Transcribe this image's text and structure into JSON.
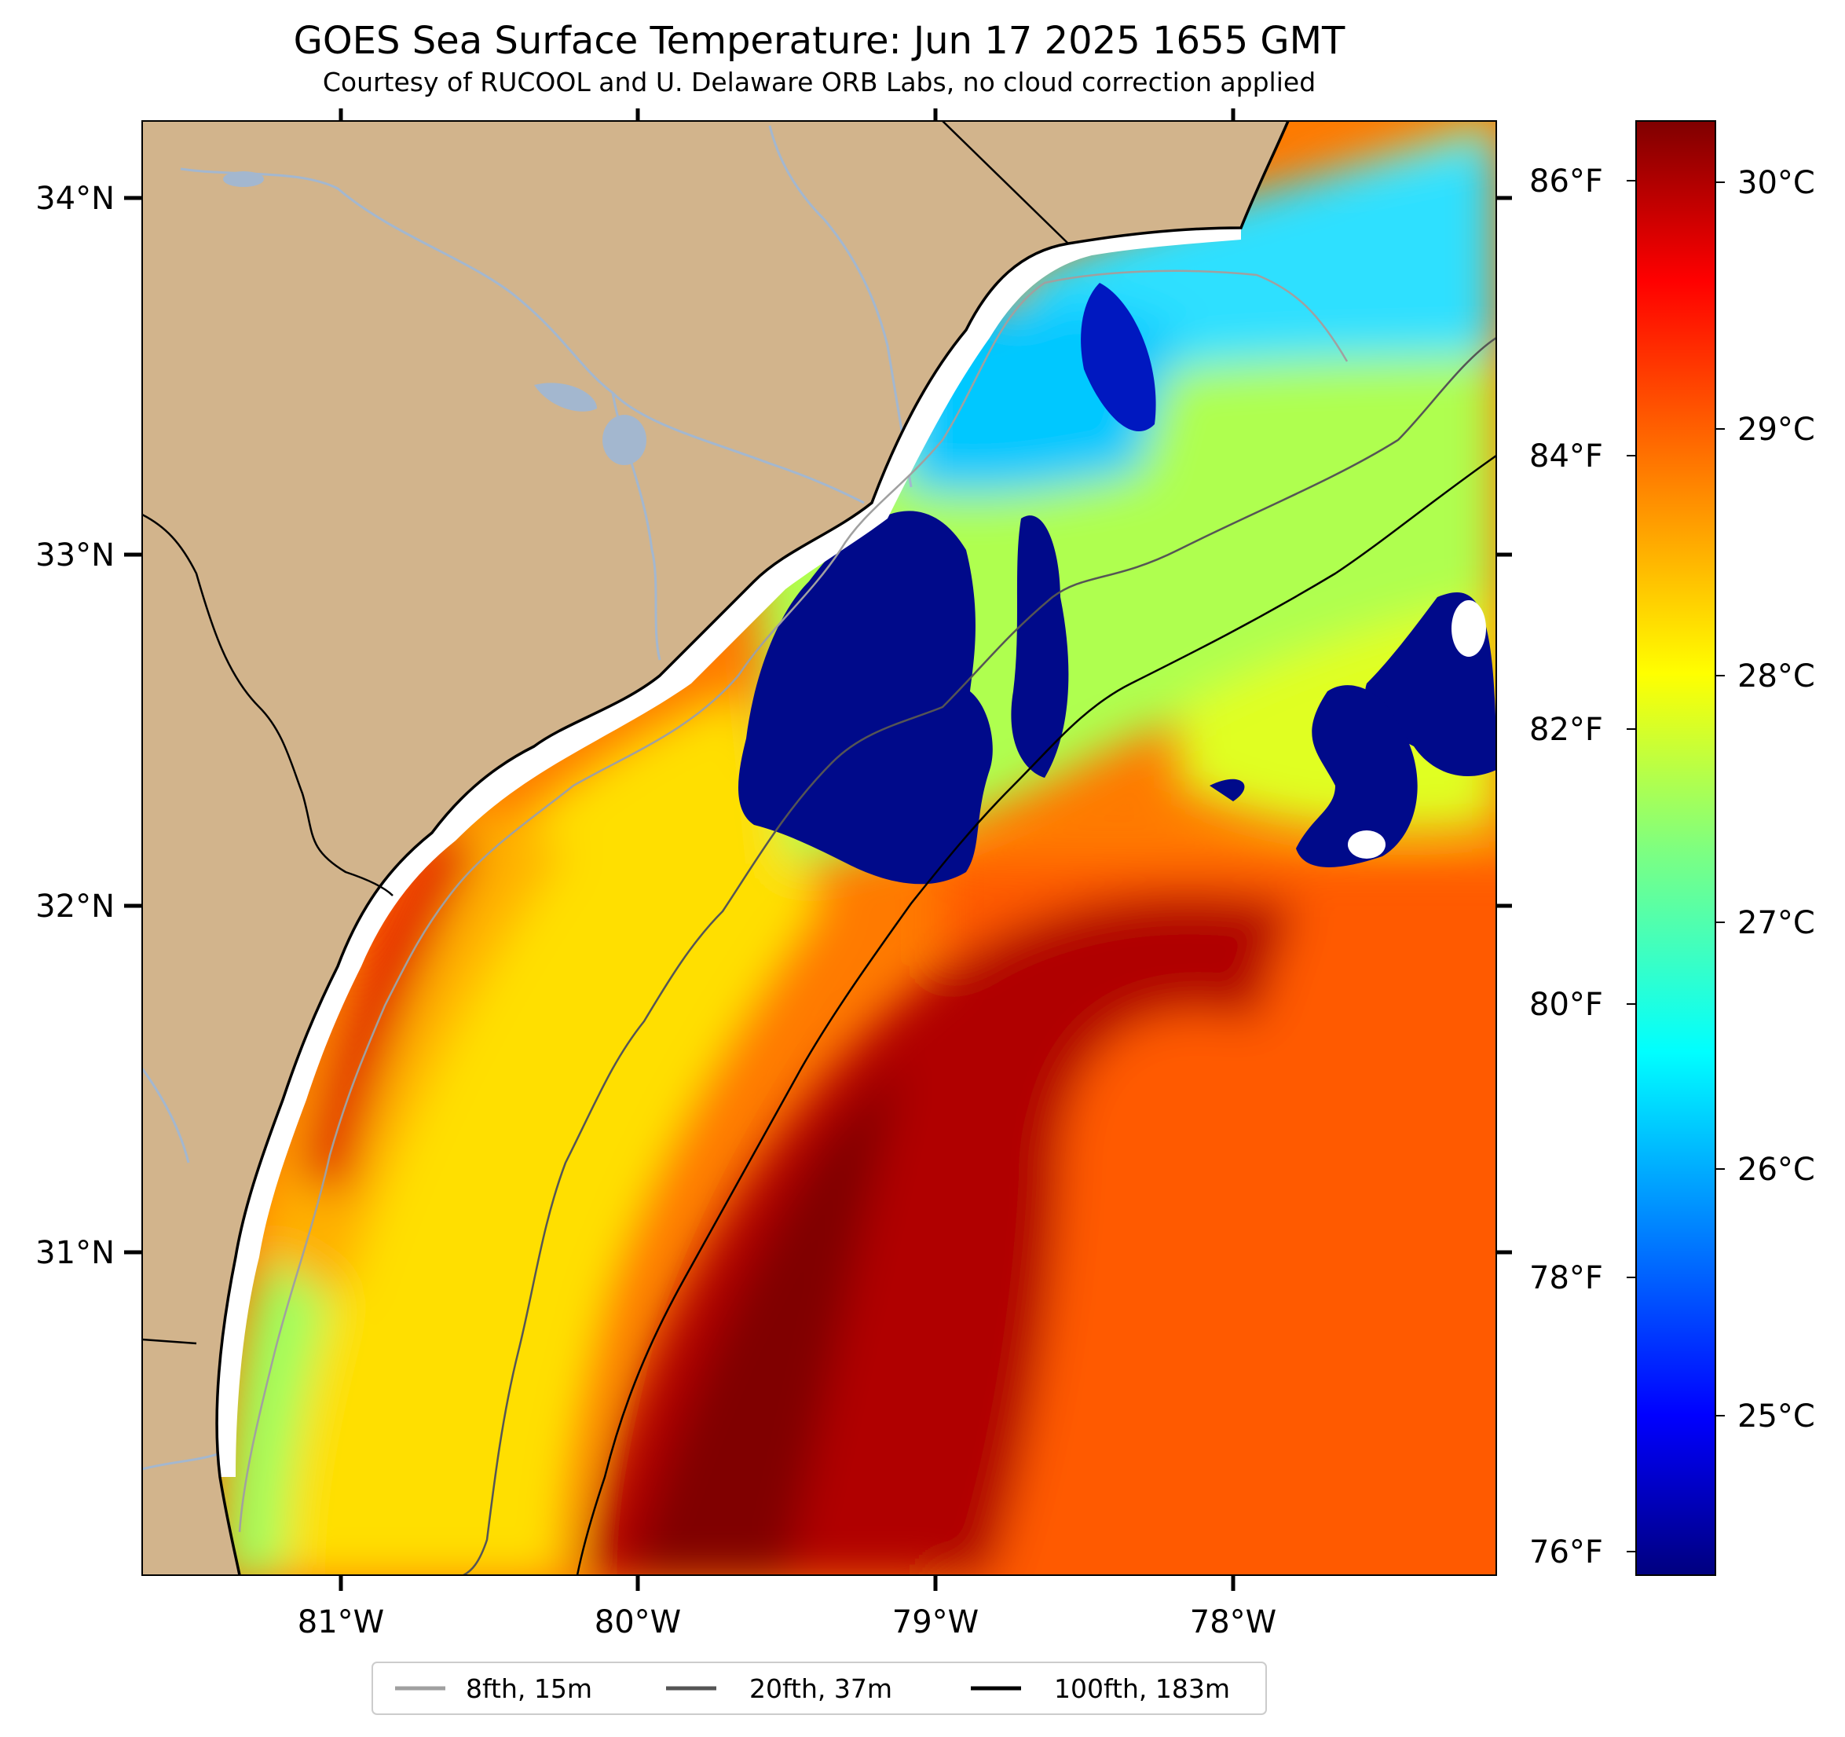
{
  "title": "GOES Sea Surface Temperature: Jun 17 2025 1655 GMT",
  "subtitle": "Courtesy of RUCOOL and U. Delaware ORB Labs, no cloud correction applied",
  "map": {
    "lat_labels": [
      "34°N",
      "33°N",
      "32°N",
      "31°N"
    ],
    "lon_labels": [
      "81°W",
      "80°W",
      "79°W",
      "78°W"
    ],
    "colors": {
      "land": "#d2b48c",
      "coast": "#000000",
      "river": "#a3b7cf"
    }
  },
  "colorbar": {
    "celsius_labels": [
      "30°C",
      "29°C",
      "28°C",
      "27°C",
      "26°C",
      "25°C"
    ],
    "fahrenheit_labels": [
      "86°F",
      "84°F",
      "82°F",
      "80°F",
      "78°F",
      "76°F"
    ],
    "colormap": "jet"
  },
  "legend": {
    "items": [
      {
        "label": "8fth, 15m",
        "color": "#a0a0a0"
      },
      {
        "label": "20fth, 37m",
        "color": "#555555"
      },
      {
        "label": "100fth, 183m",
        "color": "#000000"
      }
    ]
  }
}
